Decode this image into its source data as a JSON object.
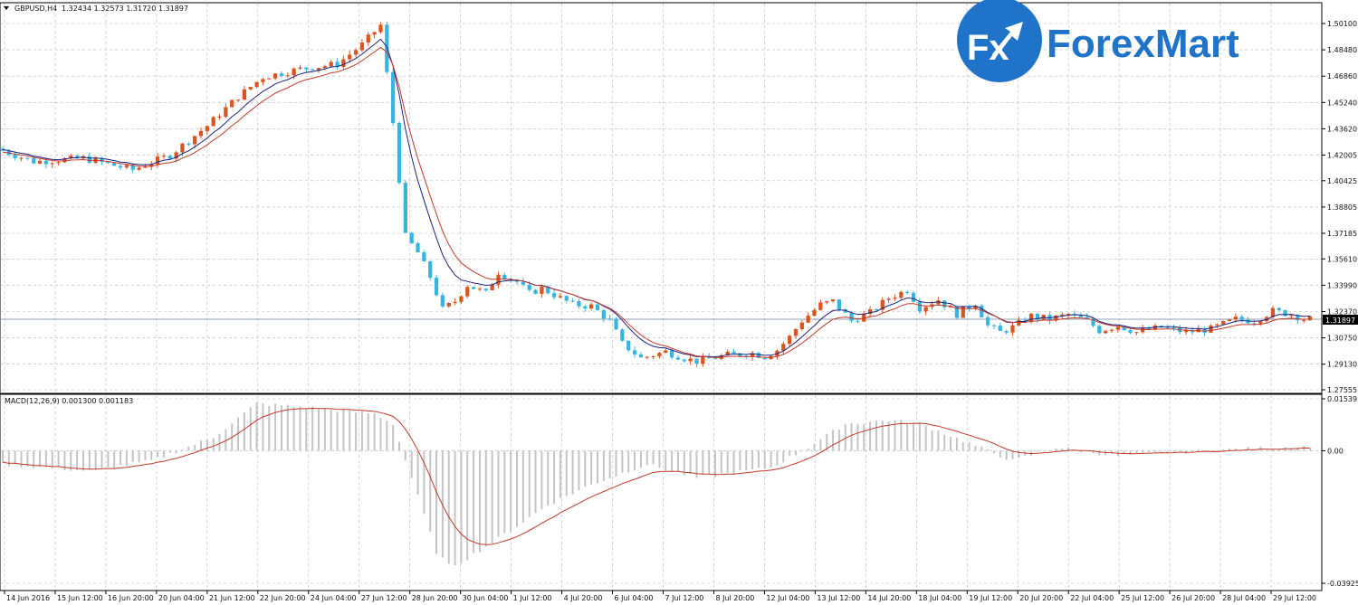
{
  "header": {
    "symbol": "GBPUSD,H4",
    "ohlc": "1.32434 1.32573 1.31720 1.31897",
    "dropdown_icon": "triangle-down-icon"
  },
  "logo": {
    "badge_text": "Fx",
    "brand_text": "ForexMart",
    "colors": {
      "blue": "#1f73c9",
      "white": "#ffffff"
    }
  },
  "price_axis": {
    "ticks": [
      "1.50100",
      "1.48480",
      "1.46860",
      "1.45240",
      "1.43620",
      "1.42005",
      "1.40425",
      "1.38805",
      "1.37185",
      "1.35610",
      "1.33990",
      "1.32370",
      "1.30750",
      "1.29130",
      "1.27555"
    ],
    "current_price": "1.31897"
  },
  "macd": {
    "label": "MACD(12,26,9) 0.001300 0.001183",
    "ticks": [
      "0.015392",
      "0.00",
      "-0.039254"
    ]
  },
  "time_axis": {
    "labels": [
      "14 Jun 2016",
      "15 Jun 12:00",
      "16 Jun 20:00",
      "20 Jun 04:00",
      "21 Jun 12:00",
      "22 Jun 20:00",
      "24 Jun 04:00",
      "27 Jun 12:00",
      "28 Jun 20:00",
      "30 Jun 04:00",
      "1 Jul 12:00",
      "4 Jul 20:00",
      "6 Jul 04:00",
      "7 Jul 12:00",
      "8 Jul 20:00",
      "12 Jul 04:00",
      "13 Jul 12:00",
      "14 Jul 20:00",
      "18 Jul 04:00",
      "19 Jul 12:00",
      "20 Jul 20:00",
      "22 Jul 04:00",
      "25 Jul 12:00",
      "26 Jul 20:00",
      "28 Jul 04:00",
      "29 Jul 12:00"
    ]
  },
  "colors": {
    "bull": "#d9541f",
    "bear": "#35b5e0",
    "ma_fast": "#1a237e",
    "ma_slow": "#c0392b",
    "macd_hist": "#c4c4c4",
    "macd_signal": "#c0392b",
    "grid": "#b8b8b8",
    "price_line": "#6b7f96",
    "axis": "#000000"
  },
  "chart_data": {
    "type": "candlestick",
    "symbol": "GBPUSD",
    "timeframe": "H4",
    "ylim": [
      1.27555,
      1.501
    ],
    "macd_ylim": [
      -0.039254,
      0.015392
    ],
    "grid": true,
    "path_anchors": [
      [
        0,
        1.424
      ],
      [
        6,
        1.416
      ],
      [
        14,
        1.418
      ],
      [
        22,
        1.411
      ],
      [
        28,
        1.42
      ],
      [
        34,
        1.438
      ],
      [
        39,
        1.456
      ],
      [
        43,
        1.468
      ],
      [
        49,
        1.473
      ],
      [
        55,
        1.476
      ],
      [
        59,
        1.488
      ],
      [
        62,
        1.5
      ],
      [
        64,
        1.44
      ],
      [
        66,
        1.37
      ],
      [
        68,
        1.36
      ],
      [
        70,
        1.345
      ],
      [
        72,
        1.325
      ],
      [
        74,
        1.33
      ],
      [
        76,
        1.34
      ],
      [
        79,
        1.335
      ],
      [
        81,
        1.348
      ],
      [
        84,
        1.342
      ],
      [
        86,
        1.335
      ],
      [
        88,
        1.338
      ],
      [
        93,
        1.328
      ],
      [
        96,
        1.327
      ],
      [
        99,
        1.318
      ],
      [
        101,
        1.304
      ],
      [
        104,
        1.295
      ],
      [
        108,
        1.299
      ],
      [
        111,
        1.295
      ],
      [
        113,
        1.293
      ],
      [
        118,
        1.297
      ],
      [
        122,
        1.298
      ],
      [
        124,
        1.296
      ],
      [
        126,
        1.3
      ],
      [
        128,
        1.308
      ],
      [
        130,
        1.318
      ],
      [
        133,
        1.328
      ],
      [
        135,
        1.33
      ],
      [
        138,
        1.318
      ],
      [
        141,
        1.323
      ],
      [
        144,
        1.332
      ],
      [
        147,
        1.337
      ],
      [
        149,
        1.326
      ],
      [
        152,
        1.331
      ],
      [
        155,
        1.322
      ],
      [
        158,
        1.329
      ],
      [
        160,
        1.315
      ],
      [
        162,
        1.311
      ],
      [
        164,
        1.314
      ],
      [
        167,
        1.321
      ],
      [
        170,
        1.319
      ],
      [
        173,
        1.322
      ],
      [
        176,
        1.318
      ],
      [
        178,
        1.312
      ],
      [
        181,
        1.315
      ],
      [
        184,
        1.311
      ],
      [
        188,
        1.314
      ],
      [
        192,
        1.311
      ],
      [
        196,
        1.313
      ],
      [
        200,
        1.319
      ],
      [
        203,
        1.318
      ],
      [
        206,
        1.324
      ],
      [
        209,
        1.322
      ],
      [
        211,
        1.319
      ]
    ],
    "macd_anchors": [
      [
        0,
        -0.004
      ],
      [
        14,
        -0.006
      ],
      [
        24,
        -0.003
      ],
      [
        34,
        0.004
      ],
      [
        41,
        0.014
      ],
      [
        48,
        0.013
      ],
      [
        60,
        0.011
      ],
      [
        63,
        0.008
      ],
      [
        66,
        -0.008
      ],
      [
        70,
        -0.03
      ],
      [
        72,
        -0.034
      ],
      [
        74,
        -0.033
      ],
      [
        80,
        -0.026
      ],
      [
        88,
        -0.016
      ],
      [
        95,
        -0.01
      ],
      [
        104,
        -0.004
      ],
      [
        112,
        -0.008
      ],
      [
        124,
        -0.005
      ],
      [
        130,
        0.001
      ],
      [
        136,
        0.008
      ],
      [
        143,
        0.009
      ],
      [
        148,
        0.008
      ],
      [
        155,
        0.003
      ],
      [
        163,
        -0.003
      ],
      [
        170,
        0.001
      ],
      [
        180,
        -0.0015
      ],
      [
        188,
        -0.0005
      ],
      [
        200,
        0.0005
      ],
      [
        211,
        0.0013
      ]
    ]
  }
}
